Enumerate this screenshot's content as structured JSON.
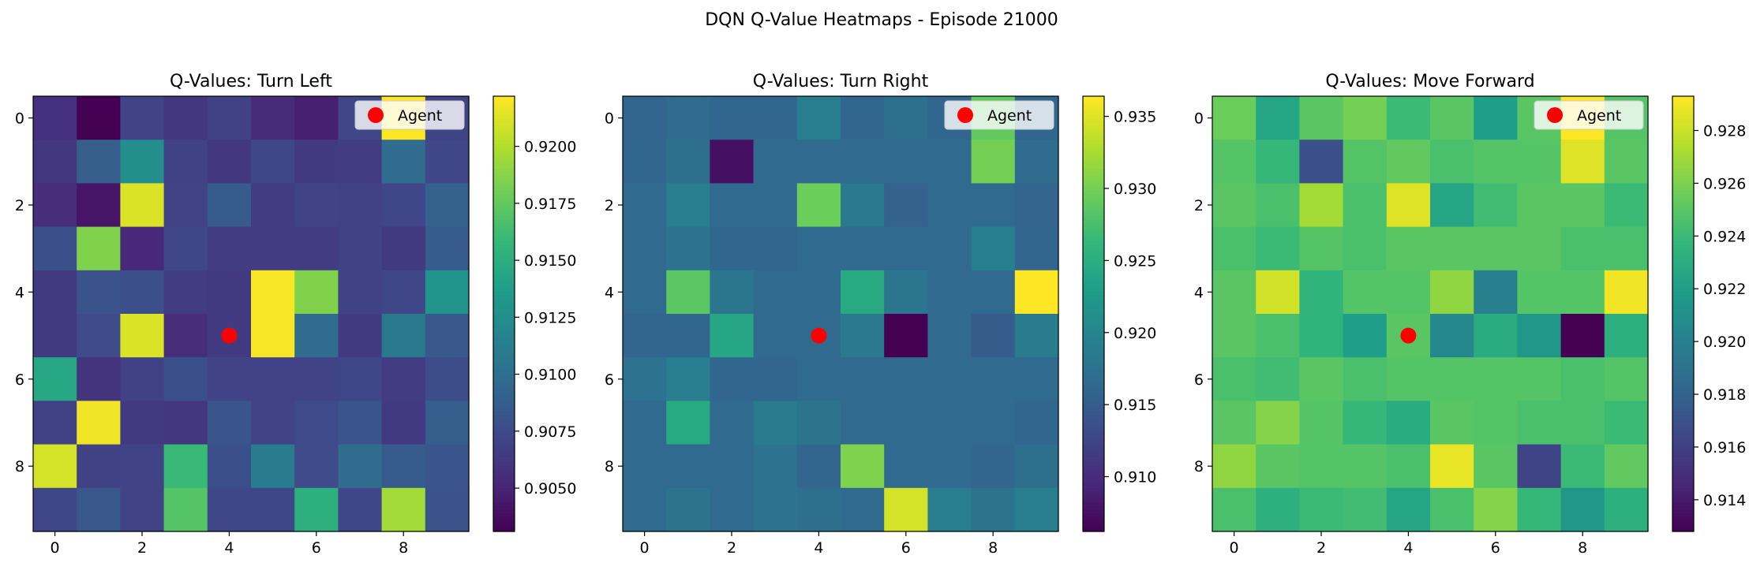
{
  "suptitle": "DQN Q-Value Heatmaps - Episode 21000",
  "legend_label": "Agent",
  "colormap": [
    "#440154",
    "#482878",
    "#3e4989",
    "#31688e",
    "#26828e",
    "#1f9e89",
    "#35b779",
    "#6ece58",
    "#b5de2b",
    "#fde725"
  ],
  "agent_color": "#ff0000",
  "chart_data": [
    {
      "type": "heatmap",
      "title": "Q-Values: Turn Left",
      "xticks": [
        0,
        2,
        4,
        6,
        8
      ],
      "yticks": [
        0,
        2,
        4,
        6,
        8
      ],
      "agent": {
        "x": 4,
        "y": 5
      },
      "colorbar": {
        "min": 0.9031,
        "max": 0.9222,
        "ticks": [
          0.905,
          0.9075,
          0.91,
          0.9125,
          0.915,
          0.9175,
          0.92
        ],
        "tick_labels": [
          "0.9050",
          "0.9075",
          "0.9100",
          "0.9125",
          "0.9150",
          "0.9175",
          "0.9200"
        ]
      },
      "values": [
        [
          0.9058,
          0.9031,
          0.907,
          0.9062,
          0.9068,
          0.9055,
          0.9048,
          0.9072,
          0.9222,
          0.907
        ],
        [
          0.9062,
          0.9088,
          0.9125,
          0.9068,
          0.9062,
          0.9072,
          0.9064,
          0.9066,
          0.9098,
          0.9072
        ],
        [
          0.9056,
          0.9042,
          0.9212,
          0.907,
          0.9086,
          0.9066,
          0.907,
          0.9068,
          0.9072,
          0.909
        ],
        [
          0.9078,
          0.9185,
          0.9052,
          0.9072,
          0.9066,
          0.9066,
          0.9066,
          0.9068,
          0.9064,
          0.9086
        ],
        [
          0.9064,
          0.908,
          0.9078,
          0.9066,
          0.9064,
          0.922,
          0.9185,
          0.9068,
          0.9072,
          0.913
        ],
        [
          0.9064,
          0.9074,
          0.9212,
          0.9056,
          0.9064,
          0.922,
          0.9098,
          0.9064,
          0.9108,
          0.9084
        ],
        [
          0.9145,
          0.906,
          0.9068,
          0.9078,
          0.907,
          0.907,
          0.907,
          0.9072,
          0.9066,
          0.9076
        ],
        [
          0.9068,
          0.9218,
          0.9064,
          0.9062,
          0.9082,
          0.907,
          0.9074,
          0.9082,
          0.9064,
          0.9088
        ],
        [
          0.921,
          0.9068,
          0.907,
          0.916,
          0.9078,
          0.911,
          0.9074,
          0.9098,
          0.9086,
          0.9082
        ],
        [
          0.9072,
          0.9084,
          0.907,
          0.917,
          0.9072,
          0.9072,
          0.9152,
          0.9072,
          0.9195,
          0.908
        ]
      ]
    },
    {
      "type": "heatmap",
      "title": "Q-Values: Turn Right",
      "xticks": [
        0,
        2,
        4,
        6,
        8
      ],
      "yticks": [
        0,
        2,
        4,
        6,
        8
      ],
      "agent": {
        "x": 4,
        "y": 5
      },
      "colorbar": {
        "min": 0.9062,
        "max": 0.9364,
        "ticks": [
          0.91,
          0.915,
          0.92,
          0.925,
          0.93,
          0.935
        ],
        "tick_labels": [
          "0.910",
          "0.915",
          "0.920",
          "0.925",
          "0.930",
          "0.935"
        ]
      },
      "values": [
        [
          0.916,
          0.9168,
          0.9162,
          0.9162,
          0.919,
          0.9162,
          0.9172,
          0.9162,
          0.929,
          0.9162
        ],
        [
          0.9162,
          0.9172,
          0.9075,
          0.9165,
          0.9165,
          0.9165,
          0.9165,
          0.9165,
          0.93,
          0.9168
        ],
        [
          0.9165,
          0.919,
          0.9165,
          0.9165,
          0.9295,
          0.9185,
          0.9155,
          0.9165,
          0.9165,
          0.9158
        ],
        [
          0.9165,
          0.9175,
          0.9162,
          0.916,
          0.9165,
          0.9165,
          0.9165,
          0.9165,
          0.9192,
          0.916
        ],
        [
          0.9165,
          0.9285,
          0.918,
          0.9165,
          0.9165,
          0.9245,
          0.918,
          0.9165,
          0.9165,
          0.9364
        ],
        [
          0.916,
          0.9162,
          0.924,
          0.9165,
          0.9165,
          0.9185,
          0.9062,
          0.9165,
          0.915,
          0.9188
        ],
        [
          0.9175,
          0.919,
          0.9162,
          0.916,
          0.9165,
          0.9165,
          0.9165,
          0.9165,
          0.9165,
          0.9165
        ],
        [
          0.9165,
          0.9245,
          0.9165,
          0.9188,
          0.9178,
          0.9165,
          0.9165,
          0.9165,
          0.9165,
          0.9162
        ],
        [
          0.9165,
          0.9165,
          0.9165,
          0.9175,
          0.916,
          0.9305,
          0.9165,
          0.9165,
          0.916,
          0.9172
        ],
        [
          0.9165,
          0.9178,
          0.9165,
          0.9175,
          0.9172,
          0.9165,
          0.9345,
          0.919,
          0.9178,
          0.919
        ]
      ]
    },
    {
      "type": "heatmap",
      "title": "Q-Values: Move Forward",
      "xticks": [
        0,
        2,
        4,
        6,
        8
      ],
      "yticks": [
        0,
        2,
        4,
        6,
        8
      ],
      "agent": {
        "x": 4,
        "y": 5
      },
      "colorbar": {
        "min": 0.9128,
        "max": 0.9293,
        "ticks": [
          0.914,
          0.916,
          0.918,
          0.92,
          0.922,
          0.924,
          0.926,
          0.928
        ],
        "tick_labels": [
          "0.914",
          "0.916",
          "0.918",
          "0.920",
          "0.922",
          "0.924",
          "0.926",
          "0.928"
        ]
      },
      "values": [
        [
          0.9255,
          0.9225,
          0.925,
          0.9258,
          0.924,
          0.925,
          0.922,
          0.925,
          0.9293,
          0.9248
        ],
        [
          0.9248,
          0.9238,
          0.9168,
          0.9248,
          0.9252,
          0.9245,
          0.9248,
          0.9248,
          0.9285,
          0.925
        ],
        [
          0.925,
          0.9245,
          0.927,
          0.9245,
          0.9285,
          0.9225,
          0.9242,
          0.925,
          0.925,
          0.924
        ],
        [
          0.9245,
          0.924,
          0.9248,
          0.9245,
          0.925,
          0.925,
          0.925,
          0.925,
          0.9245,
          0.9245
        ],
        [
          0.925,
          0.9282,
          0.9235,
          0.9248,
          0.9248,
          0.9265,
          0.92,
          0.9248,
          0.9248,
          0.929
        ],
        [
          0.925,
          0.9245,
          0.9235,
          0.922,
          0.925,
          0.9205,
          0.923,
          0.9215,
          0.9128,
          0.9232
        ],
        [
          0.9245,
          0.9242,
          0.925,
          0.9245,
          0.9248,
          0.9248,
          0.9248,
          0.9248,
          0.9245,
          0.9248
        ],
        [
          0.925,
          0.9262,
          0.9248,
          0.9238,
          0.923,
          0.925,
          0.9248,
          0.9245,
          0.9245,
          0.924
        ],
        [
          0.9265,
          0.925,
          0.9248,
          0.9248,
          0.9245,
          0.9288,
          0.925,
          0.9162,
          0.924,
          0.9252
        ],
        [
          0.9245,
          0.9232,
          0.924,
          0.9242,
          0.9225,
          0.9245,
          0.9262,
          0.9238,
          0.9215,
          0.9232
        ]
      ]
    }
  ]
}
